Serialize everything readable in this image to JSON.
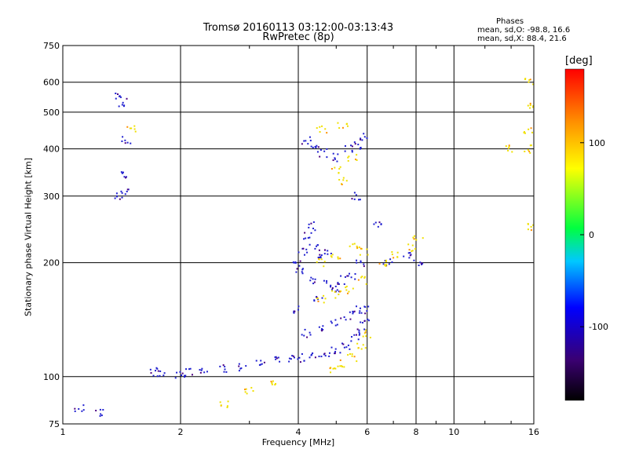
{
  "chart_data": {
    "type": "scatter",
    "title": "Tromsø 20160113 03:12:00-03:13:43",
    "subtitle": "RwPretec (8p)",
    "xlabel": "Frequency [MHz]",
    "ylabel": "Stationary phase Virtual Height [km]",
    "x_scale": "log",
    "y_scale": "log",
    "xlim": [
      1,
      16
    ],
    "ylim": [
      75,
      750
    ],
    "x_ticks": [
      1,
      2,
      4,
      6,
      8,
      10,
      16
    ],
    "y_ticks": [
      75,
      100,
      200,
      300,
      400,
      500,
      600,
      750
    ],
    "grid": true,
    "phases_title": "Phases",
    "phases_o": "mean, sd,O: -98.8, 16.6",
    "phases_x": "mean, sd,X:  88.4, 21.6",
    "colorbar": {
      "label": "[deg]",
      "range": [
        -180,
        180
      ],
      "ticks": [
        100,
        0,
        -100
      ],
      "colors": [
        "#000000",
        "#4b0082",
        "#0000ff",
        "#00ffff",
        "#00ff00",
        "#ffff00",
        "#ff8000",
        "#ff0000"
      ]
    },
    "series": [
      {
        "name": "O",
        "mean_phase": -98.8,
        "color": "#2020d0",
        "trace_points": [
          [
            1.4,
            550
          ],
          [
            1.42,
            530
          ],
          [
            1.45,
            420
          ],
          [
            1.45,
            340
          ],
          [
            1.45,
            310
          ],
          [
            1.38,
            300
          ],
          [
            1.7,
            103
          ],
          [
            1.8,
            101
          ],
          [
            2.0,
            101
          ],
          [
            2.1,
            103
          ],
          [
            2.3,
            105
          ],
          [
            2.6,
            105
          ],
          [
            2.9,
            106
          ],
          [
            3.2,
            108
          ],
          [
            3.5,
            110
          ],
          [
            3.8,
            112
          ],
          [
            4.1,
            112
          ],
          [
            4.4,
            113
          ],
          [
            4.7,
            115
          ],
          [
            5.0,
            118
          ],
          [
            5.3,
            121
          ],
          [
            5.6,
            126
          ],
          [
            5.8,
            132
          ],
          [
            5.9,
            140
          ],
          [
            5.95,
            150
          ],
          [
            4.2,
            130
          ],
          [
            4.6,
            135
          ],
          [
            5.0,
            140
          ],
          [
            5.4,
            145
          ],
          [
            5.7,
            150
          ],
          [
            4.0,
            150
          ],
          [
            4.5,
            160
          ],
          [
            5.0,
            170
          ],
          [
            5.5,
            185
          ],
          [
            5.8,
            200
          ],
          [
            4.0,
            190
          ],
          [
            4.4,
            180
          ],
          [
            4.8,
            175
          ],
          [
            5.2,
            180
          ],
          [
            4.0,
            200
          ],
          [
            4.1,
            215
          ],
          [
            4.2,
            235
          ],
          [
            4.3,
            250
          ],
          [
            4.4,
            220
          ],
          [
            4.6,
            210
          ],
          [
            4.8,
            215
          ],
          [
            4.2,
            420
          ],
          [
            4.4,
            400
          ],
          [
            4.6,
            390
          ],
          [
            5.4,
            400
          ],
          [
            5.7,
            410
          ],
          [
            5.9,
            430
          ],
          [
            5.0,
            380
          ],
          [
            5.6,
            300
          ],
          [
            6.4,
            250
          ],
          [
            6.8,
            200
          ],
          [
            7.6,
            210
          ],
          [
            8.1,
            200
          ],
          [
            1.25,
            80
          ],
          [
            1.1,
            83
          ]
        ]
      },
      {
        "name": "X",
        "mean_phase": 88.4,
        "color": "#f0e000",
        "trace_points": [
          [
            4.9,
            105
          ],
          [
            5.2,
            108
          ],
          [
            5.5,
            112
          ],
          [
            5.8,
            120
          ],
          [
            5.95,
            130
          ],
          [
            4.6,
            160
          ],
          [
            5.0,
            165
          ],
          [
            5.4,
            170
          ],
          [
            5.8,
            180
          ],
          [
            4.6,
            200
          ],
          [
            5.0,
            210
          ],
          [
            5.5,
            220
          ],
          [
            5.9,
            215
          ],
          [
            5.0,
            350
          ],
          [
            5.2,
            330
          ],
          [
            5.5,
            380
          ],
          [
            4.6,
            450
          ],
          [
            5.2,
            460
          ],
          [
            6.6,
            200
          ],
          [
            7.0,
            210
          ],
          [
            7.8,
            220
          ],
          [
            8.1,
            235
          ],
          [
            15.5,
            600
          ],
          [
            15.5,
            520
          ],
          [
            15.5,
            450
          ],
          [
            15.5,
            400
          ],
          [
            15.5,
            250
          ],
          [
            1.5,
            450
          ],
          [
            2.6,
            85
          ],
          [
            3.4,
            95
          ],
          [
            3.0,
            92
          ],
          [
            14.0,
            400
          ]
        ]
      }
    ]
  }
}
